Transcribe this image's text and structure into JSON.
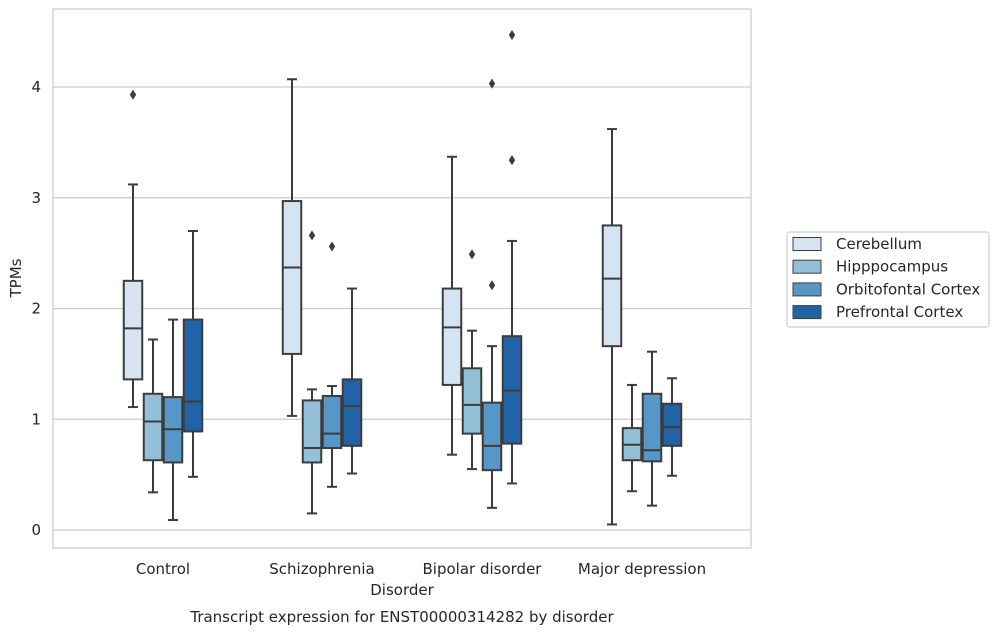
{
  "chart_data": {
    "type": "boxplot",
    "xlabel": "Disorder",
    "ylabel": "TPMs",
    "caption": "Transcript expression for ENST00000314282 by disorder",
    "ylim": [
      -0.15,
      4.7
    ],
    "yticks": [
      0,
      1,
      2,
      3,
      4
    ],
    "grid": true,
    "legend_position": "right",
    "categories": [
      "Control",
      "Schizophrenia",
      "Bipolar disorder",
      "Major depression"
    ],
    "series": [
      {
        "name": "Cerebellum",
        "color": "#d6e4f2",
        "boxes": [
          {
            "whislo": 1.11,
            "q1": 1.36,
            "med": 1.82,
            "q3": 2.25,
            "whishi": 3.12,
            "fliers": [
              3.93
            ]
          },
          {
            "whislo": 1.03,
            "q1": 1.59,
            "med": 2.37,
            "q3": 2.97,
            "whishi": 4.07,
            "fliers": []
          },
          {
            "whislo": 0.68,
            "q1": 1.31,
            "med": 1.83,
            "q3": 2.18,
            "whishi": 3.37,
            "fliers": []
          },
          {
            "whislo": 0.05,
            "q1": 1.66,
            "med": 2.27,
            "q3": 2.75,
            "whishi": 3.62,
            "fliers": []
          }
        ]
      },
      {
        "name": "Hipppocampus",
        "color": "#93bfd8",
        "boxes": [
          {
            "whislo": 0.34,
            "q1": 0.63,
            "med": 0.98,
            "q3": 1.23,
            "whishi": 1.72,
            "fliers": []
          },
          {
            "whislo": 0.15,
            "q1": 0.61,
            "med": 0.74,
            "q3": 1.17,
            "whishi": 1.27,
            "fliers": [
              2.66
            ]
          },
          {
            "whislo": 0.55,
            "q1": 0.87,
            "med": 1.13,
            "q3": 1.46,
            "whishi": 1.8,
            "fliers": [
              2.49
            ]
          },
          {
            "whislo": 0.35,
            "q1": 0.63,
            "med": 0.77,
            "q3": 0.92,
            "whishi": 1.31,
            "fliers": []
          }
        ]
      },
      {
        "name": "Orbitofontal Cortex",
        "color": "#5797c7",
        "boxes": [
          {
            "whislo": 0.09,
            "q1": 0.61,
            "med": 0.91,
            "q3": 1.2,
            "whishi": 1.9,
            "fliers": []
          },
          {
            "whislo": 0.39,
            "q1": 0.74,
            "med": 0.87,
            "q3": 1.21,
            "whishi": 1.3,
            "fliers": [
              2.56
            ]
          },
          {
            "whislo": 0.2,
            "q1": 0.54,
            "med": 0.76,
            "q3": 1.15,
            "whishi": 1.66,
            "fliers": [
              2.21,
              4.03
            ]
          },
          {
            "whislo": 0.22,
            "q1": 0.62,
            "med": 0.72,
            "q3": 1.23,
            "whishi": 1.61,
            "fliers": []
          }
        ]
      },
      {
        "name": "Prefrontal Cortex",
        "color": "#2163a6",
        "boxes": [
          {
            "whislo": 0.48,
            "q1": 0.89,
            "med": 1.16,
            "q3": 1.9,
            "whishi": 2.7,
            "fliers": []
          },
          {
            "whislo": 0.51,
            "q1": 0.76,
            "med": 1.12,
            "q3": 1.36,
            "whishi": 2.18,
            "fliers": []
          },
          {
            "whislo": 0.42,
            "q1": 0.78,
            "med": 1.26,
            "q3": 1.75,
            "whishi": 2.61,
            "fliers": [
              3.34,
              4.47
            ]
          },
          {
            "whislo": 0.49,
            "q1": 0.76,
            "med": 0.93,
            "q3": 1.14,
            "whishi": 1.37,
            "fliers": []
          }
        ]
      }
    ]
  }
}
